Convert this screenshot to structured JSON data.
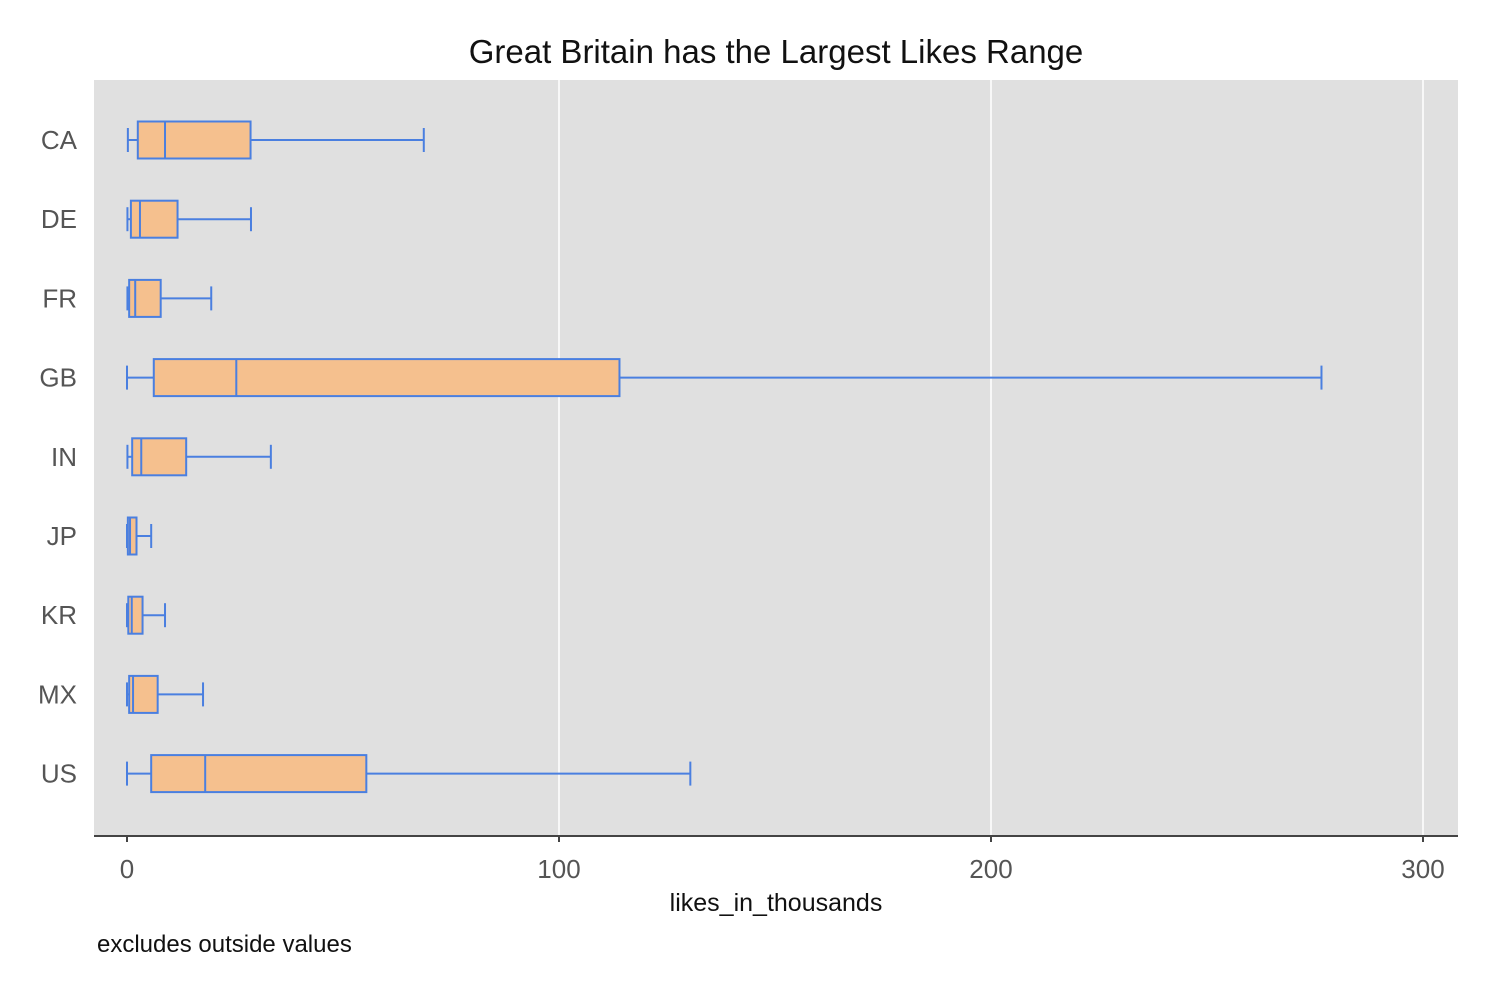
{
  "chart_data": {
    "type": "boxplot",
    "orientation": "horizontal",
    "title": "Great Britain has the Largest Likes Range",
    "xlabel": "likes_in_thousands",
    "ylabel": "",
    "footnote": "excludes outside values",
    "xlim": [
      0,
      300
    ],
    "xticks": [
      0,
      100,
      200,
      300
    ],
    "xtick_labels": [
      "0",
      "100",
      "200",
      "300"
    ],
    "grid": true,
    "categories": [
      "CA",
      "DE",
      "FR",
      "GB",
      "IN",
      "JP",
      "KR",
      "MX",
      "US"
    ],
    "boxes": [
      {
        "label": "CA",
        "whisker_low": 0.2,
        "q1": 2.5,
        "median": 8.8,
        "q3": 28.6,
        "whisker_high": 68.7
      },
      {
        "label": "DE",
        "whisker_low": 0.1,
        "q1": 0.9,
        "median": 3.0,
        "q3": 11.7,
        "whisker_high": 28.7
      },
      {
        "label": "FR",
        "whisker_low": 0.1,
        "q1": 0.5,
        "median": 1.9,
        "q3": 7.8,
        "whisker_high": 19.5
      },
      {
        "label": "GB",
        "whisker_low": 0.0,
        "q1": 6.2,
        "median": 25.3,
        "q3": 114.0,
        "whisker_high": 276.5
      },
      {
        "label": "IN",
        "whisker_low": 0.1,
        "q1": 1.2,
        "median": 3.3,
        "q3": 13.7,
        "whisker_high": 33.3
      },
      {
        "label": "JP",
        "whisker_low": 0.0,
        "q1": 0.2,
        "median": 0.7,
        "q3": 2.2,
        "whisker_high": 5.6
      },
      {
        "label": "KR",
        "whisker_low": 0.0,
        "q1": 0.3,
        "median": 1.1,
        "q3": 3.6,
        "whisker_high": 8.8
      },
      {
        "label": "MX",
        "whisker_low": 0.0,
        "q1": 0.5,
        "median": 1.4,
        "q3": 7.1,
        "whisker_high": 17.6
      },
      {
        "label": "US",
        "whisker_low": 0.0,
        "q1": 5.6,
        "median": 18.1,
        "q3": 55.4,
        "whisker_high": 130.4
      }
    ],
    "colors": {
      "box_fill": "#f5c08e",
      "box_stroke": "#4a7fe0",
      "panel_bg": "#e0e0e0",
      "grid": "#ffffff",
      "axis": "#444444"
    }
  }
}
